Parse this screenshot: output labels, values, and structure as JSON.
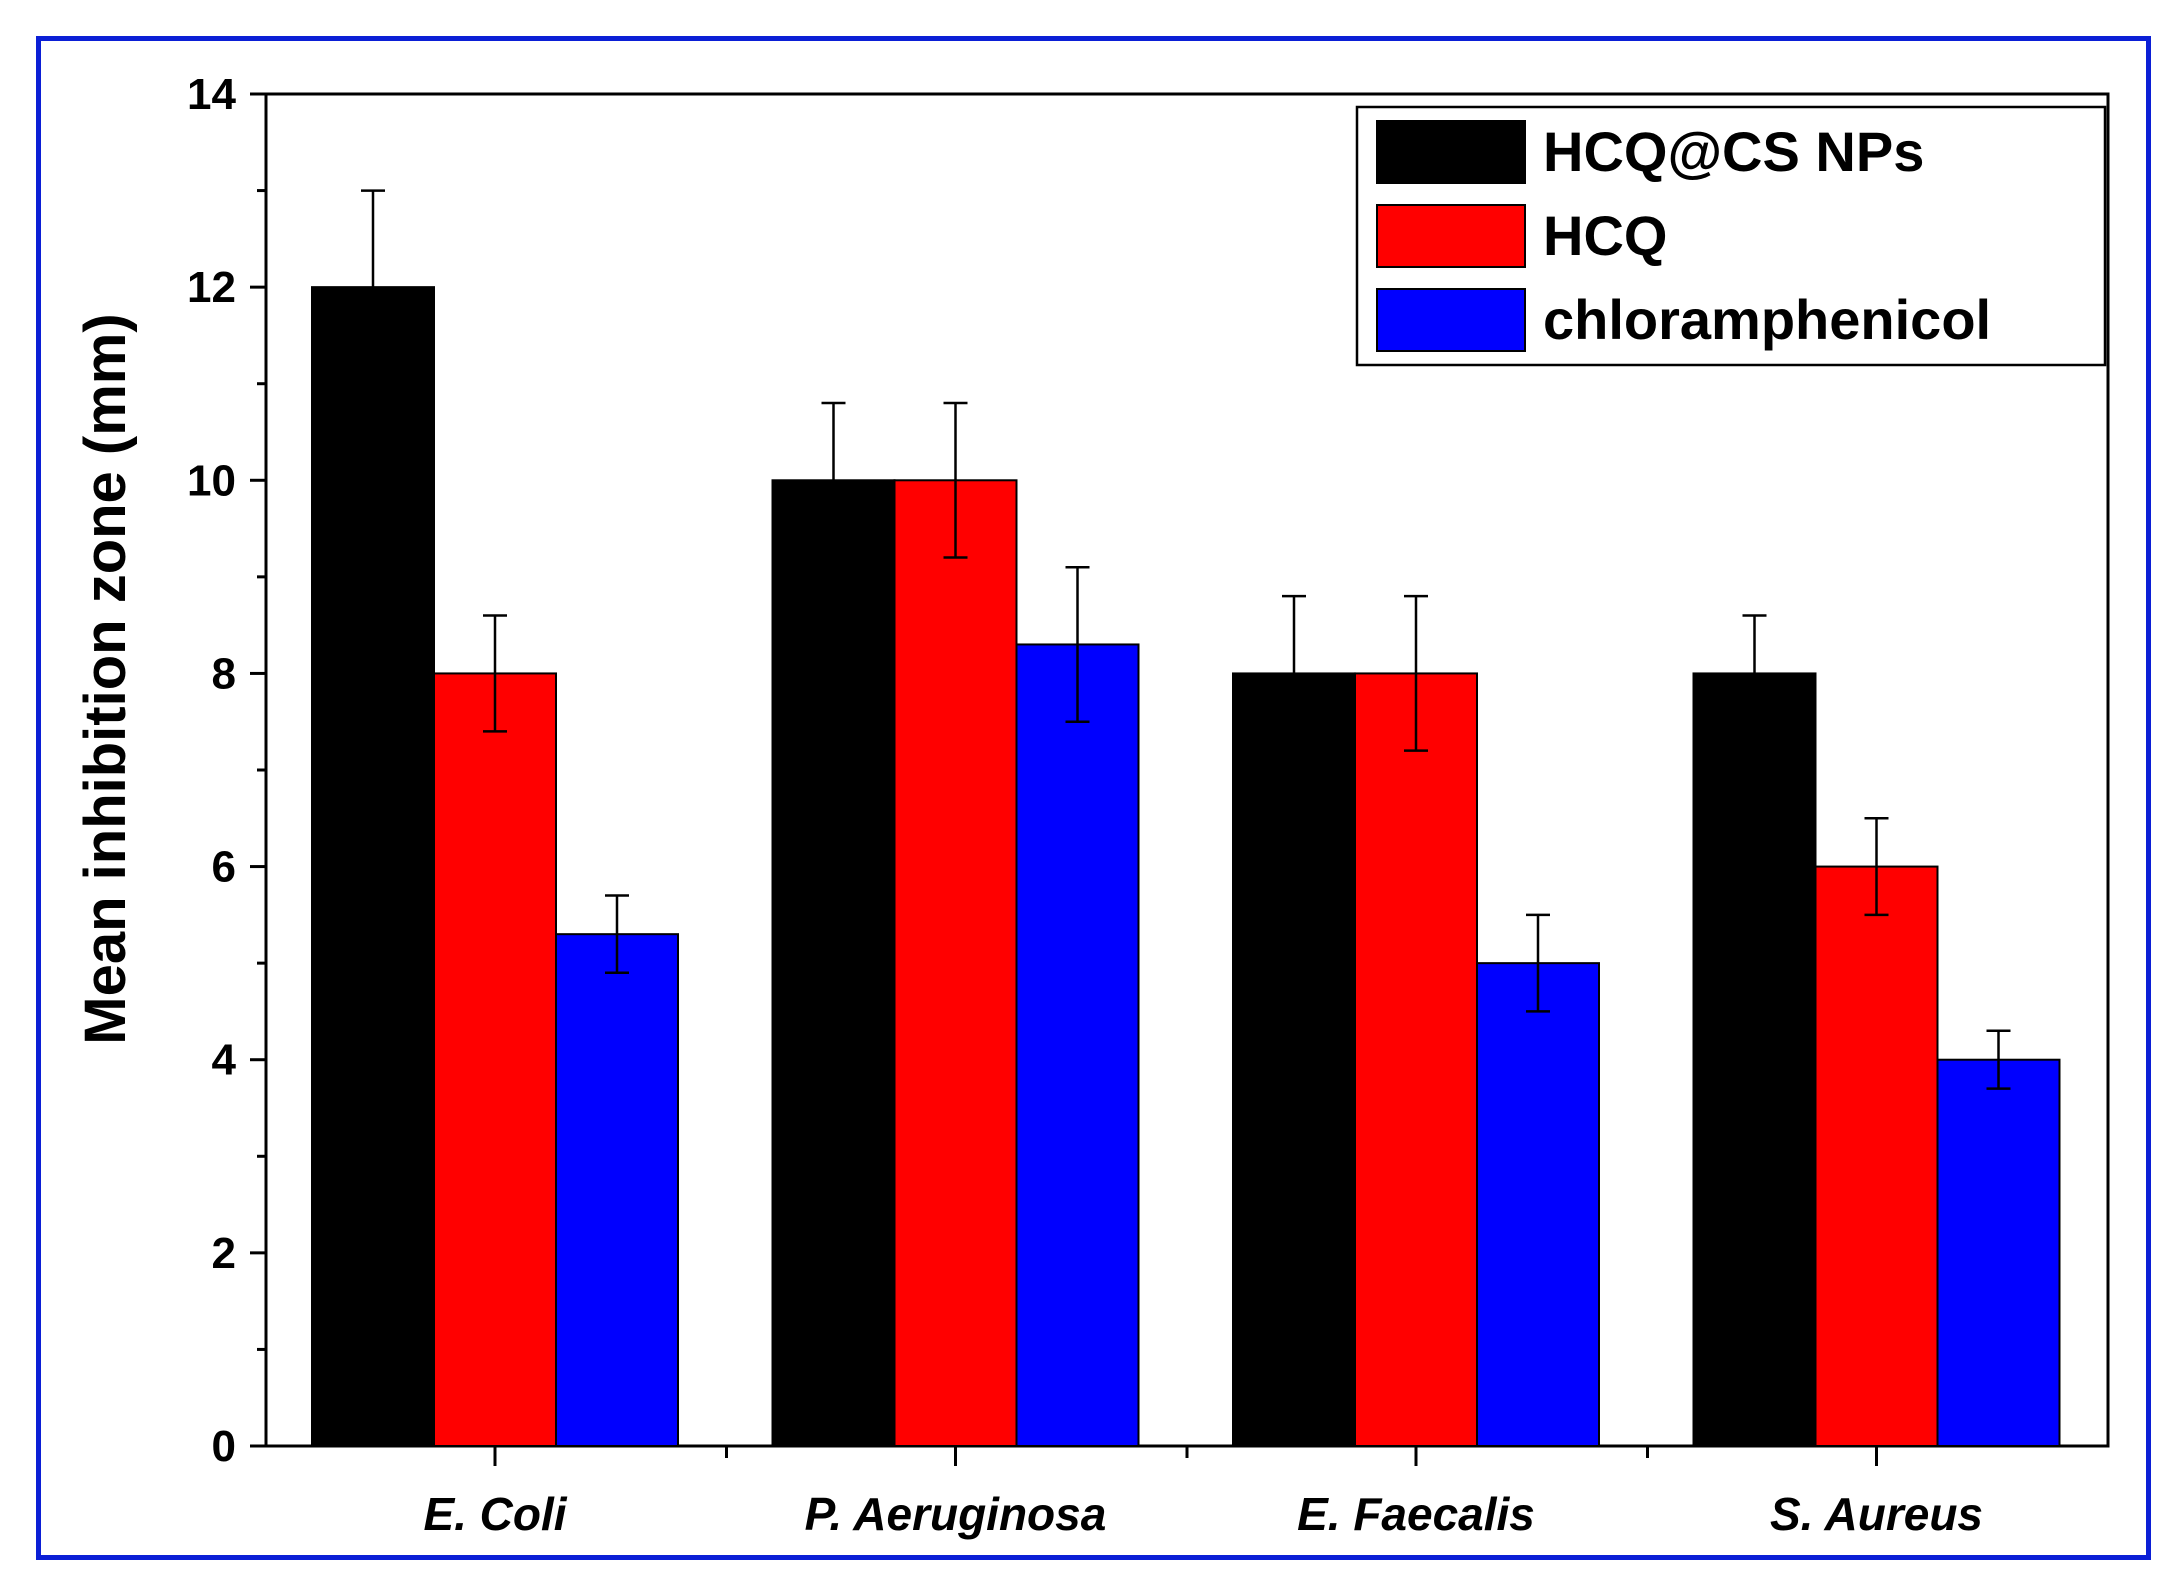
{
  "chart_data": {
    "type": "bar",
    "title": "",
    "xlabel": "",
    "ylabel": "Mean inhibition zone (mm)",
    "ylim": [
      0,
      14
    ],
    "yticks": [
      0,
      2,
      4,
      6,
      8,
      10,
      12,
      14
    ],
    "yticks_labels": [
      "0",
      "2",
      "4",
      "6",
      "8",
      "10",
      "12",
      "14"
    ],
    "grid": false,
    "legend_position": "top-right",
    "categories": [
      "E. Coli",
      "P. Aeruginosa",
      "E. Faecalis",
      "S. Aureus"
    ],
    "series": [
      {
        "name": "HCQ@CS NPs",
        "color": "#000000",
        "values": [
          12,
          10,
          8,
          8
        ],
        "errors": [
          1.0,
          0.8,
          0.8,
          0.6
        ]
      },
      {
        "name": "HCQ",
        "color": "#ff0000",
        "values": [
          8,
          10,
          8,
          6
        ],
        "errors": [
          0.6,
          0.8,
          0.8,
          0.5
        ]
      },
      {
        "name": "chloramphenicol",
        "color": "#0000ff",
        "values": [
          5.3,
          8.3,
          5,
          4
        ],
        "errors": [
          0.4,
          0.8,
          0.5,
          0.3
        ]
      }
    ]
  },
  "colors": {
    "frame": "#0b1fd6"
  }
}
